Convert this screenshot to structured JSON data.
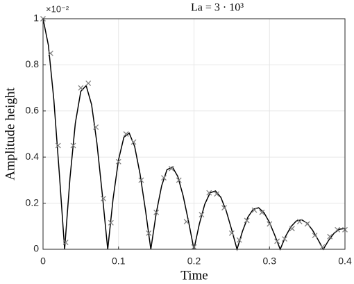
{
  "chart_data": {
    "type": "line",
    "title": "La = 3 · 10³",
    "xlabel": "Time",
    "ylabel": "Amplitude height",
    "y_exponent_label": "×10⁻²",
    "xlim": [
      0,
      0.4
    ],
    "xticks": [
      0,
      0.1,
      0.2,
      0.3,
      0.4
    ],
    "ylim": [
      0,
      1
    ],
    "yticks": [
      0,
      0.2,
      0.4,
      0.6,
      0.8,
      1
    ],
    "grid": true,
    "series": [
      {
        "type": "line",
        "color": "#000000",
        "x": [
          0,
          0.0071,
          0.0143,
          0.0214,
          0.0286,
          0.0357,
          0.0428,
          0.05,
          0.0571,
          0.0643,
          0.0714,
          0.0785,
          0.0857,
          0.0928,
          0.1,
          0.1071,
          0.1142,
          0.1214,
          0.1285,
          0.1357,
          0.1428,
          0.1499,
          0.1571,
          0.1642,
          0.1714,
          0.1785,
          0.1856,
          0.1928,
          0.1999,
          0.2071,
          0.2142,
          0.2213,
          0.2285,
          0.2356,
          0.2428,
          0.2499,
          0.257,
          0.2642,
          0.2713,
          0.2785,
          0.2856,
          0.2927,
          0.2999,
          0.307,
          0.3142,
          0.3213,
          0.3284,
          0.3356,
          0.3427,
          0.3499,
          0.357,
          0.3641,
          0.3713,
          0.3784,
          0.3856,
          0.3927,
          0.3998
        ],
        "values": [
          1,
          0.885,
          0.649,
          0.337,
          0,
          0.309,
          0.547,
          0.685,
          0.71,
          0.628,
          0.46,
          0.239,
          0,
          0.219,
          0.388,
          0.486,
          0.504,
          0.446,
          0.327,
          0.17,
          0,
          0.156,
          0.275,
          0.345,
          0.357,
          0.316,
          0.232,
          0.12,
          0,
          0.11,
          0.195,
          0.245,
          0.253,
          0.225,
          0.165,
          0.085,
          0,
          0.078,
          0.139,
          0.174,
          0.18,
          0.159,
          0.117,
          0.061,
          0,
          0.056,
          0.098,
          0.123,
          0.128,
          0.113,
          0.083,
          0.043,
          0,
          0.039,
          0.07,
          0.087,
          0.09
        ]
      },
      {
        "type": "scatter",
        "marker": "x",
        "color": "#808080",
        "x": [
          0,
          0.01,
          0.02,
          0.03,
          0.04,
          0.05,
          0.06,
          0.07,
          0.08,
          0.09,
          0.1,
          0.11,
          0.12,
          0.13,
          0.14,
          0.15,
          0.16,
          0.17,
          0.18,
          0.19,
          0.2,
          0.21,
          0.22,
          0.23,
          0.24,
          0.25,
          0.26,
          0.27,
          0.28,
          0.29,
          0.3,
          0.31,
          0.32,
          0.33,
          0.34,
          0.35,
          0.36,
          0.37,
          0.38,
          0.39,
          0.4
        ],
        "values": [
          1,
          0.85,
          0.45,
          0.03,
          0.45,
          0.7,
          0.72,
          0.53,
          0.22,
          0.115,
          0.38,
          0.5,
          0.465,
          0.3,
          0.07,
          0.16,
          0.31,
          0.35,
          0.3,
          0.12,
          0.01,
          0.15,
          0.245,
          0.24,
          0.18,
          0.07,
          0.04,
          0.125,
          0.17,
          0.16,
          0.11,
          0.035,
          0.045,
          0.09,
          0.12,
          0.11,
          0.06,
          0.01,
          0.055,
          0.085,
          0.085
        ]
      }
    ]
  }
}
